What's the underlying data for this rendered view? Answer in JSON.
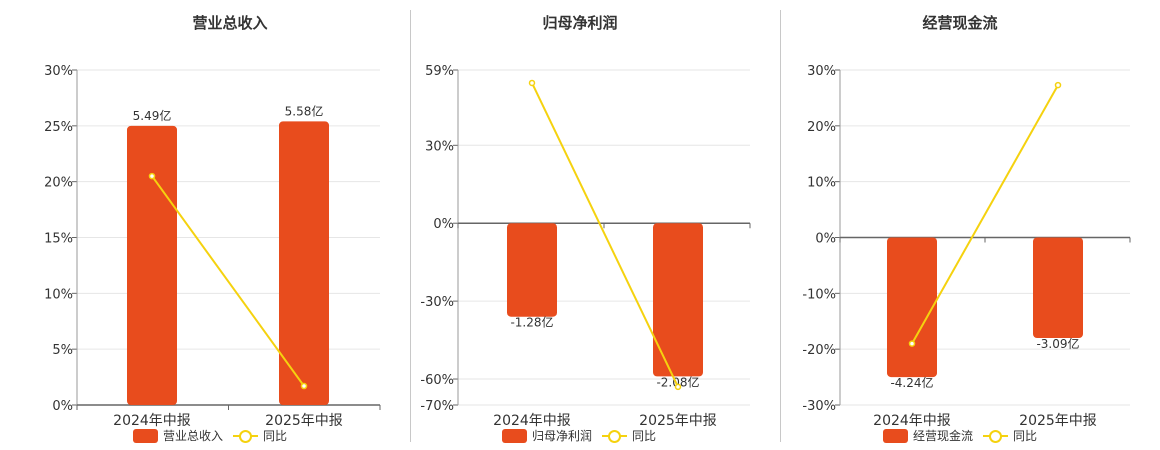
{
  "colors": {
    "bar": "#e84c1d",
    "line": "#f5d20f",
    "grid": "#e6e6e6",
    "axis": "#666666",
    "text": "#333333"
  },
  "chart_data": [
    {
      "type": "bar",
      "title": "营业总收入",
      "categories": [
        "2024年中报",
        "2025年中报"
      ],
      "bar_labels": [
        "5.49亿",
        "5.58亿"
      ],
      "y_ticks": [
        "30%",
        "25%",
        "20%",
        "15%",
        "10%",
        "5%",
        "0%"
      ],
      "ylim": [
        0,
        30
      ],
      "series": [
        {
          "name": "营业总收入",
          "type": "bar",
          "values": [
            25,
            25.4
          ]
        },
        {
          "name": "同比",
          "type": "line",
          "values": [
            20.5,
            1.7
          ]
        }
      ]
    },
    {
      "type": "bar",
      "title": "归母净利润",
      "categories": [
        "2024年中报",
        "2025年中报"
      ],
      "bar_labels": [
        "-1.28亿",
        "-2.08亿"
      ],
      "y_ticks": [
        "59%",
        "30%",
        "0%",
        "-30%",
        "-60%",
        "-70%"
      ],
      "ylim": [
        -70,
        59
      ],
      "series": [
        {
          "name": "归母净利润",
          "type": "bar",
          "values": [
            -36,
            -59
          ]
        },
        {
          "name": "同比",
          "type": "line",
          "values": [
            54,
            -63
          ]
        }
      ]
    },
    {
      "type": "bar",
      "title": "经营现金流",
      "categories": [
        "2024年中报",
        "2025年中报"
      ],
      "bar_labels": [
        "-4.24亿",
        "-3.09亿"
      ],
      "y_ticks": [
        "30%",
        "20%",
        "10%",
        "0%",
        "-10%",
        "-20%",
        "-30%"
      ],
      "ylim": [
        -30,
        30
      ],
      "series": [
        {
          "name": "经营现金流",
          "type": "bar",
          "values": [
            -25,
            -18
          ]
        },
        {
          "name": "同比",
          "type": "line",
          "values": [
            -19,
            27.3
          ]
        }
      ]
    }
  ]
}
